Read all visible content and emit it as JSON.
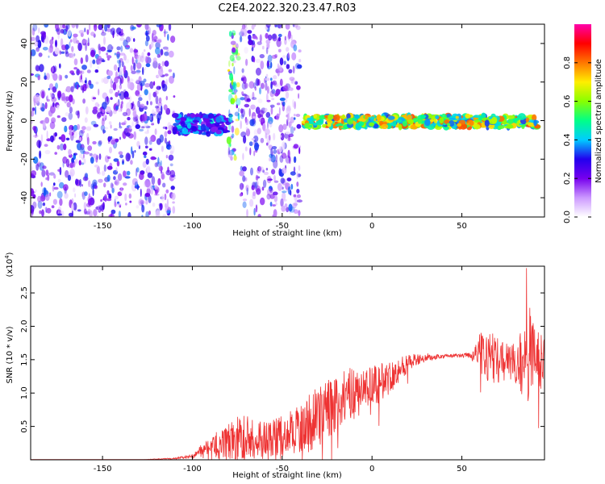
{
  "title": "C2E4.2022.320.23.47.R03",
  "chart_data": [
    {
      "type": "heatmap",
      "xlabel": "Height of straight line (km)",
      "ylabel": "Frequency (Hz)",
      "xlim": [
        -190,
        96
      ],
      "ylim": [
        -50,
        50
      ],
      "xticks": [
        -150,
        -100,
        -50,
        0,
        50
      ],
      "yticks": [
        -40,
        -20,
        0,
        20,
        40
      ],
      "colorbar": {
        "label": "Normalized spectral amplitude",
        "range": [
          0.0,
          1.0
        ],
        "ticks": [
          0.0,
          0.2,
          0.4,
          0.6,
          0.8
        ],
        "colors": [
          "#ffffff",
          "#cc99ff",
          "#7700ee",
          "#2200ee",
          "#00ccff",
          "#00ff88",
          "#88ff00",
          "#ffee00",
          "#ff7700",
          "#ff0000",
          "#ff00aa"
        ]
      },
      "features": [
        {
          "x_range": [
            -190,
            -110
          ],
          "freq_range": [
            -50,
            50
          ],
          "amplitude": 0.15
        },
        {
          "x_range": [
            -110,
            -80
          ],
          "freq_range": [
            -5,
            5
          ],
          "center_hz": -2,
          "amplitude": 0.35
        },
        {
          "x_range": [
            -80,
            -74
          ],
          "freq_range": [
            -20,
            48
          ],
          "amplitude": 0.3
        },
        {
          "x_range": [
            -73,
            -40
          ],
          "freq_range": [
            -50,
            50
          ],
          "amplitude": 0.15
        },
        {
          "x_range": [
            -38,
            92
          ],
          "freq_range": [
            -3,
            3
          ],
          "center_hz": -0.5,
          "amplitude": 0.65
        }
      ]
    },
    {
      "type": "line",
      "xlabel": "Height of straight line (km)",
      "ylabel": "SNR (10 * v/v)",
      "scale_label": "(x10",
      "scale_exponent": "4",
      "xlim": [
        -190,
        96
      ],
      "ylim": [
        0,
        2.9
      ],
      "xticks": [
        -150,
        -100,
        -50,
        0,
        50
      ],
      "yticks": [
        0.5,
        1.0,
        1.5,
        2.0,
        2.5
      ],
      "ytick_labels": [
        "0.5",
        "1.0",
        "1.5",
        "2.0",
        "2.5"
      ],
      "color": "#ee3333",
      "series": [
        {
          "x": [
            -190,
            -170,
            -150,
            -130,
            -110,
            -100,
            -95,
            -90,
            -85,
            -80,
            -75,
            -70,
            -65,
            -60,
            -55,
            -50,
            -45,
            -40,
            -35,
            -30,
            -25,
            -20,
            -15,
            -10,
            -5,
            0,
            5,
            10,
            15,
            20,
            25,
            30,
            35,
            40,
            45,
            50,
            55,
            60,
            65,
            70,
            75,
            80,
            85,
            88,
            90,
            93,
            96
          ],
          "y": [
            0.0,
            0.0,
            0.0,
            0.0,
            0.02,
            0.05,
            0.15,
            0.2,
            0.2,
            0.25,
            0.3,
            0.35,
            0.3,
            0.3,
            0.35,
            0.35,
            0.4,
            0.5,
            0.55,
            0.65,
            0.75,
            0.85,
            0.95,
            1.0,
            1.05,
            1.1,
            1.15,
            1.25,
            1.35,
            1.45,
            1.5,
            1.52,
            1.54,
            1.55,
            1.56,
            1.56,
            1.57,
            1.6,
            1.55,
            1.5,
            1.45,
            1.45,
            1.4,
            1.6,
            1.5,
            1.4,
            1.6
          ],
          "noise": [
            0.0,
            0.0,
            0.0,
            0.0,
            0.01,
            0.03,
            0.08,
            0.12,
            0.2,
            0.3,
            0.35,
            0.35,
            0.3,
            0.3,
            0.3,
            0.3,
            0.35,
            0.4,
            0.45,
            0.45,
            0.45,
            0.45,
            0.4,
            0.4,
            0.35,
            0.3,
            0.3,
            0.25,
            0.2,
            0.15,
            0.08,
            0.05,
            0.04,
            0.03,
            0.03,
            0.03,
            0.05,
            0.3,
            0.4,
            0.35,
            0.3,
            0.3,
            0.6,
            0.8,
            0.7,
            0.5,
            0.3
          ]
        }
      ]
    }
  ]
}
